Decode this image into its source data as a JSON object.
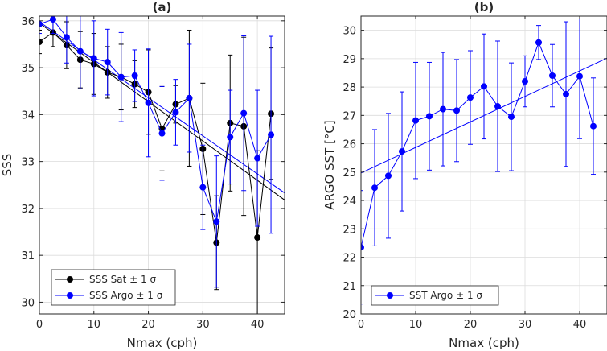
{
  "chart_data": [
    {
      "type": "line",
      "title": "(a)",
      "xlabel": "Nmax (cph)",
      "ylabel": "SSS",
      "xlim": [
        0,
        45
      ],
      "ylim": [
        29.75,
        36.1
      ],
      "xticks": [
        0,
        10,
        20,
        30,
        40
      ],
      "yticks": [
        30,
        31,
        32,
        33,
        34,
        35,
        36
      ],
      "grid": true,
      "legend": "bottom-left",
      "legend_entries": [
        "SSS Sat ± 1 σ",
        "SSS Argo ± 1 σ"
      ],
      "series": [
        {
          "name": "SSS Sat ± 1 σ",
          "color": "#000000",
          "x": [
            0,
            2.5,
            5,
            7.5,
            10,
            12.5,
            15,
            17.5,
            20,
            22.5,
            25,
            27.5,
            30,
            32.5,
            35,
            37.5,
            40,
            42.5
          ],
          "y": [
            35.55,
            35.75,
            35.48,
            35.17,
            35.08,
            34.9,
            34.8,
            34.65,
            34.48,
            33.7,
            34.22,
            34.35,
            33.27,
            31.27,
            33.82,
            33.75,
            31.38,
            34.02
          ],
          "err": [
            0.25,
            0.3,
            0.5,
            0.6,
            0.65,
            0.55,
            0.7,
            0.5,
            0.9,
            0.9,
            0.4,
            1.45,
            1.4,
            1.0,
            1.45,
            1.9,
            1.85,
            1.4
          ],
          "fit": {
            "x": [
              0,
              45
            ],
            "y": [
              35.95,
              32.18
            ]
          }
        },
        {
          "name": "SSS Argo ± 1 σ",
          "color": "#0000ff",
          "x": [
            0,
            2.5,
            5,
            7.5,
            10,
            12.5,
            15,
            17.5,
            20,
            22.5,
            25,
            27.5,
            30,
            32.5,
            35,
            37.5,
            40,
            42.5
          ],
          "y": [
            35.93,
            36.03,
            35.65,
            35.35,
            35.2,
            35.12,
            34.8,
            34.83,
            34.25,
            33.6,
            34.05,
            34.35,
            32.45,
            31.72,
            33.52,
            34.03,
            33.07,
            33.57
          ],
          "err": [
            0.2,
            0.3,
            0.55,
            0.8,
            0.8,
            0.7,
            0.95,
            0.55,
            1.15,
            1.0,
            0.7,
            1.15,
            0.9,
            1.4,
            1.0,
            1.65,
            1.45,
            2.1
          ],
          "fit": {
            "x": [
              0,
              45
            ],
            "y": [
              35.98,
              32.33
            ]
          }
        }
      ]
    },
    {
      "type": "line",
      "title": "(b)",
      "xlabel": "Nmax (cph)",
      "ylabel": "ARGO SST [°C]",
      "xlim": [
        0,
        45
      ],
      "ylim": [
        20,
        30.5
      ],
      "xticks": [
        0,
        10,
        20,
        30,
        40
      ],
      "yticks": [
        20,
        21,
        22,
        23,
        24,
        25,
        26,
        27,
        28,
        29,
        30
      ],
      "grid": true,
      "legend": "bottom-left",
      "legend_entries": [
        "SST Argo ± 1 σ"
      ],
      "series": [
        {
          "name": "SST Argo ± 1 σ",
          "color": "#0000ff",
          "x": [
            0,
            2.5,
            5,
            7.5,
            10,
            12.5,
            15,
            17.5,
            20,
            22.5,
            25,
            27.5,
            30,
            32.5,
            35,
            37.5,
            40,
            42.5
          ],
          "y": [
            22.35,
            24.45,
            24.87,
            25.73,
            26.82,
            26.97,
            27.22,
            27.17,
            27.63,
            28.02,
            27.32,
            26.95,
            28.2,
            29.57,
            28.4,
            27.75,
            28.38,
            26.62
          ],
          "err": [
            2.0,
            2.05,
            2.2,
            2.1,
            2.05,
            1.9,
            2.0,
            1.8,
            1.65,
            1.85,
            2.3,
            1.9,
            0.9,
            0.6,
            1.1,
            2.55,
            2.2,
            1.7
          ],
          "fit": {
            "x": [
              0,
              45
            ],
            "y": [
              24.97,
              29.02
            ]
          }
        }
      ]
    }
  ]
}
